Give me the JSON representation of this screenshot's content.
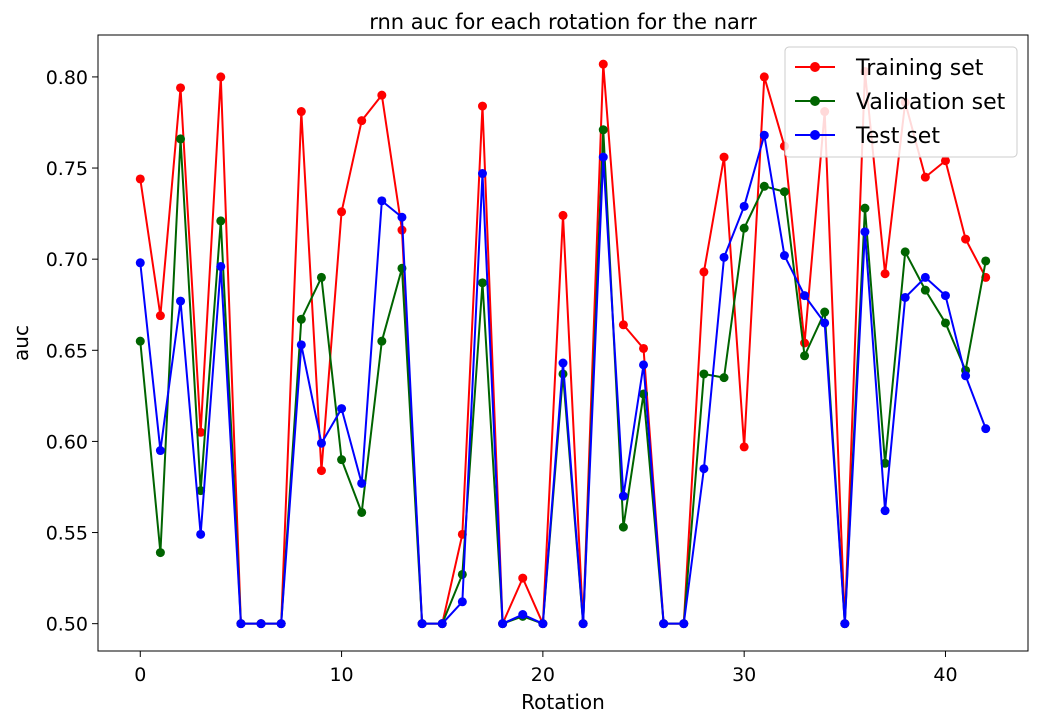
{
  "chart_data": {
    "type": "line",
    "title": "rnn auc for each rotation for the narr",
    "xlabel": "Rotation",
    "ylabel": "auc",
    "xlim": [
      -2.1,
      44.1
    ],
    "ylim": [
      0.485,
      0.823
    ],
    "xticks": [
      0,
      10,
      20,
      30,
      40
    ],
    "xtick_labels": [
      "0",
      "10",
      "20",
      "30",
      "40"
    ],
    "yticks": [
      0.5,
      0.55,
      0.6,
      0.65,
      0.7,
      0.75,
      0.8
    ],
    "ytick_labels": [
      "0.50",
      "0.55",
      "0.60",
      "0.65",
      "0.70",
      "0.75",
      "0.80"
    ],
    "grid": false,
    "legend_position": "top-right",
    "x": [
      0,
      1,
      2,
      3,
      4,
      5,
      6,
      7,
      8,
      9,
      10,
      11,
      12,
      13,
      14,
      15,
      16,
      17,
      18,
      19,
      20,
      21,
      22,
      23,
      24,
      25,
      26,
      27,
      28,
      29,
      30,
      31,
      32,
      33,
      34,
      35,
      36,
      37,
      38,
      39,
      40,
      41,
      42
    ],
    "series": [
      {
        "name": "Training set",
        "color": "#ff0000",
        "values": [
          0.744,
          0.669,
          0.794,
          0.605,
          0.8,
          0.5,
          0.5,
          0.5,
          0.781,
          0.584,
          0.726,
          0.776,
          0.79,
          0.716,
          0.5,
          0.5,
          0.549,
          0.784,
          0.5,
          0.525,
          0.5,
          0.724,
          0.5,
          0.807,
          0.664,
          0.651,
          0.5,
          0.5,
          0.693,
          0.756,
          0.597,
          0.8,
          0.762,
          0.654,
          0.781,
          0.5,
          0.803,
          0.692,
          0.786,
          0.745,
          0.754,
          0.711,
          0.69
        ]
      },
      {
        "name": "Validation set",
        "color": "#006400",
        "values": [
          0.655,
          0.539,
          0.766,
          0.573,
          0.721,
          0.5,
          0.5,
          0.5,
          0.667,
          0.69,
          0.59,
          0.561,
          0.655,
          0.695,
          0.5,
          0.5,
          0.527,
          0.687,
          0.5,
          0.504,
          0.5,
          0.637,
          0.5,
          0.771,
          0.553,
          0.626,
          0.5,
          0.5,
          0.637,
          0.635,
          0.717,
          0.74,
          0.737,
          0.647,
          0.671,
          0.5,
          0.728,
          0.588,
          0.704,
          0.683,
          0.665,
          0.639,
          0.699
        ]
      },
      {
        "name": "Test set",
        "color": "#0000ff",
        "values": [
          0.698,
          0.595,
          0.677,
          0.549,
          0.696,
          0.5,
          0.5,
          0.5,
          0.653,
          0.599,
          0.618,
          0.577,
          0.732,
          0.723,
          0.5,
          0.5,
          0.512,
          0.747,
          0.5,
          0.505,
          0.5,
          0.643,
          0.5,
          0.756,
          0.57,
          0.642,
          0.5,
          0.5,
          0.585,
          0.701,
          0.729,
          0.768,
          0.702,
          0.68,
          0.665,
          0.5,
          0.715,
          0.562,
          0.679,
          0.69,
          0.68,
          0.636,
          0.607
        ]
      }
    ]
  }
}
